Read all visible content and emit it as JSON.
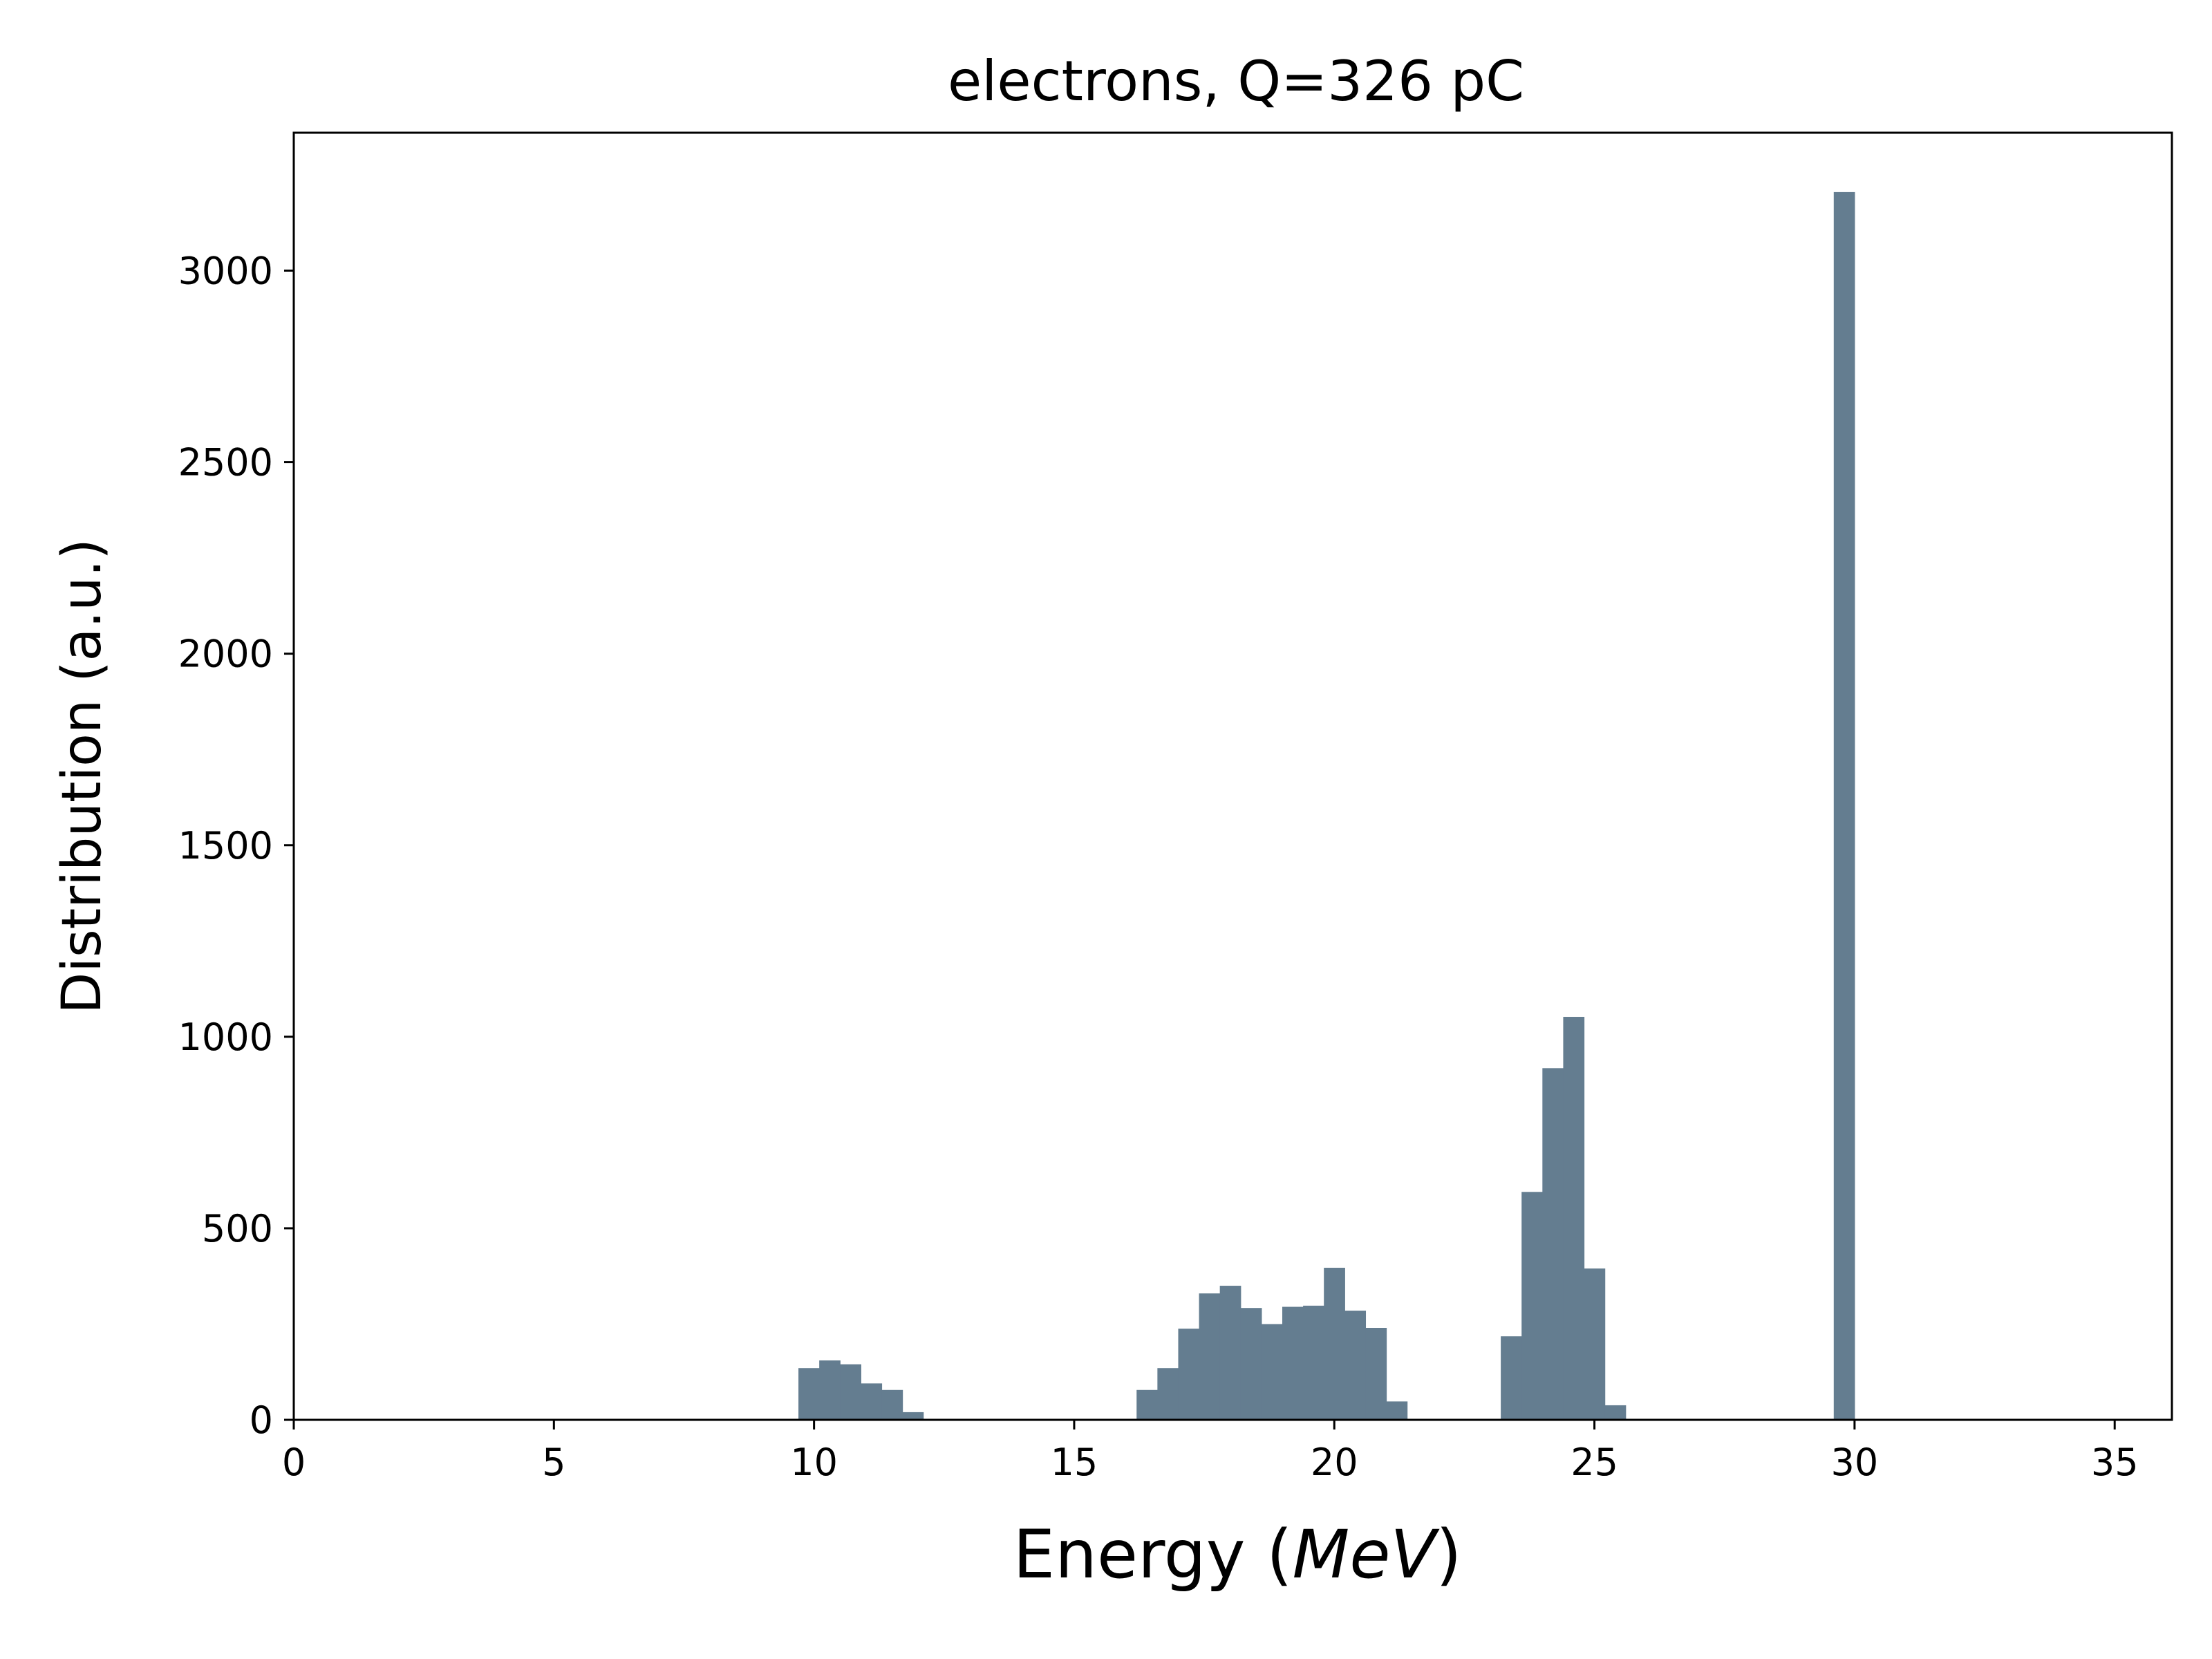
{
  "chart_data": {
    "type": "bar",
    "title": "electrons, Q=326 pC",
    "xlabel": "Energy (",
    "xlabel_unit": "MeV",
    "xlabel_close": ")",
    "ylabel": "Distribution (a.u.)",
    "xlim": [
      0,
      36.1
    ],
    "ylim": [
      0,
      3360
    ],
    "xticks": [
      0,
      5,
      10,
      15,
      20,
      25,
      30,
      35
    ],
    "yticks": [
      0,
      500,
      1000,
      1500,
      2000,
      2500,
      3000
    ],
    "grid": false,
    "bar_color": "#647d90",
    "bin_width": 0.4,
    "bins": [
      {
        "x": 9.7,
        "value": 135
      },
      {
        "x": 10.1,
        "value": 155
      },
      {
        "x": 10.5,
        "value": 145
      },
      {
        "x": 10.9,
        "value": 95
      },
      {
        "x": 11.3,
        "value": 78
      },
      {
        "x": 11.7,
        "value": 20
      },
      {
        "x": 16.2,
        "value": 78
      },
      {
        "x": 16.6,
        "value": 135
      },
      {
        "x": 17.0,
        "value": 238
      },
      {
        "x": 17.4,
        "value": 330
      },
      {
        "x": 17.8,
        "value": 350
      },
      {
        "x": 18.2,
        "value": 292
      },
      {
        "x": 18.6,
        "value": 250
      },
      {
        "x": 19.0,
        "value": 295
      },
      {
        "x": 19.4,
        "value": 298
      },
      {
        "x": 19.8,
        "value": 397
      },
      {
        "x": 20.2,
        "value": 285
      },
      {
        "x": 20.6,
        "value": 240
      },
      {
        "x": 21.0,
        "value": 48
      },
      {
        "x": 23.2,
        "value": 218
      },
      {
        "x": 23.6,
        "value": 595
      },
      {
        "x": 24.0,
        "value": 918
      },
      {
        "x": 24.4,
        "value": 1052
      },
      {
        "x": 24.8,
        "value": 395
      },
      {
        "x": 25.2,
        "value": 38
      },
      {
        "x": 29.6,
        "value": 3205
      }
    ]
  }
}
